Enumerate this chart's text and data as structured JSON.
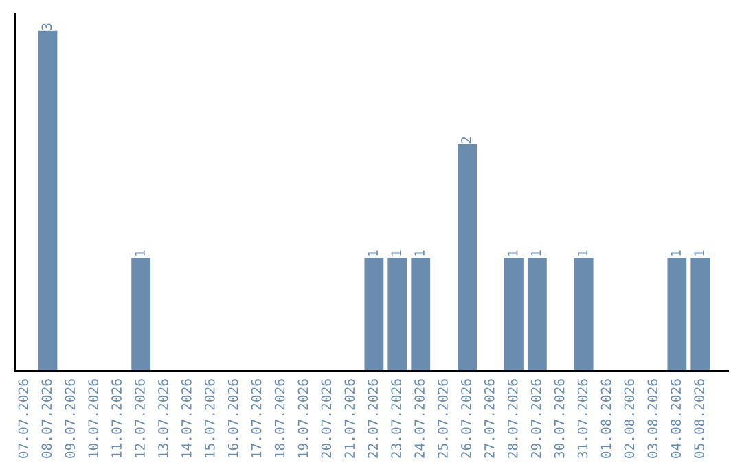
{
  "chart_data": {
    "type": "bar",
    "categories": [
      "07.07.2026",
      "08.07.2026",
      "09.07.2026",
      "10.07.2026",
      "11.07.2026",
      "12.07.2026",
      "13.07.2026",
      "14.07.2026",
      "15.07.2026",
      "16.07.2026",
      "17.07.2026",
      "18.07.2026",
      "19.07.2026",
      "20.07.2026",
      "21.07.2026",
      "22.07.2026",
      "23.07.2026",
      "24.07.2026",
      "25.07.2026",
      "26.07.2026",
      "27.07.2026",
      "28.07.2026",
      "29.07.2026",
      "30.07.2026",
      "31.07.2026",
      "01.08.2026",
      "02.08.2026",
      "03.08.2026",
      "04.08.2026",
      "05.08.2026"
    ],
    "values": [
      0,
      3,
      0,
      0,
      0,
      1,
      0,
      0,
      0,
      0,
      0,
      0,
      0,
      0,
      0,
      1,
      1,
      1,
      0,
      2,
      0,
      1,
      1,
      0,
      1,
      0,
      0,
      0,
      1,
      1
    ],
    "value_labels": [
      null,
      "3",
      null,
      null,
      null,
      "1",
      null,
      null,
      null,
      null,
      null,
      null,
      null,
      null,
      null,
      "1",
      "1",
      "1",
      null,
      "2",
      null,
      "1",
      "1",
      null,
      "1",
      null,
      null,
      null,
      "1",
      "1"
    ],
    "color": "#6a8caf",
    "tick_labels": "x",
    "grid": false,
    "legend": false
  }
}
